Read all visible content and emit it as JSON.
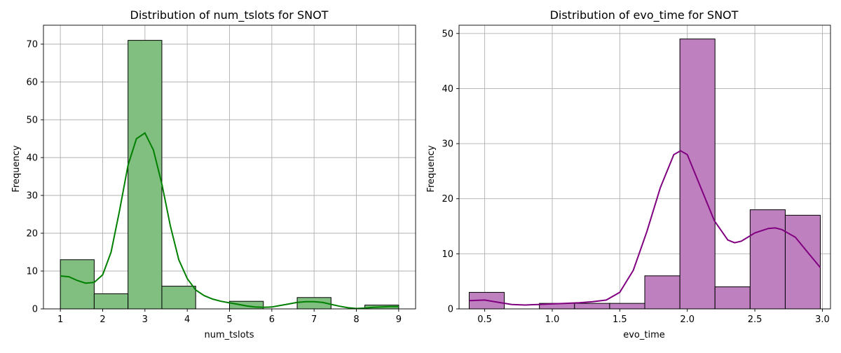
{
  "chart_data": [
    {
      "type": "bar",
      "subtype": "histogram",
      "title": "Distribution of num_tslots for SNOT",
      "xlabel": "num_tslots",
      "ylabel": "Frequency",
      "xlim": [
        0.6,
        9.4
      ],
      "ylim": [
        0,
        75
      ],
      "xticks": [
        1,
        2,
        3,
        4,
        5,
        6,
        7,
        8,
        9
      ],
      "yticks": [
        0,
        10,
        20,
        30,
        40,
        50,
        60,
        70
      ],
      "grid": true,
      "bar_color": "#80bf80",
      "kde_color": "#008000",
      "bins": [
        {
          "x0": 1.0,
          "x1": 1.8,
          "count": 13
        },
        {
          "x0": 1.8,
          "x1": 2.6,
          "count": 4
        },
        {
          "x0": 2.6,
          "x1": 3.4,
          "count": 71
        },
        {
          "x0": 3.4,
          "x1": 4.2,
          "count": 6
        },
        {
          "x0": 4.2,
          "x1": 5.0,
          "count": 0
        },
        {
          "x0": 5.0,
          "x1": 5.8,
          "count": 2
        },
        {
          "x0": 5.8,
          "x1": 6.6,
          "count": 0
        },
        {
          "x0": 6.6,
          "x1": 7.4,
          "count": 3
        },
        {
          "x0": 7.4,
          "x1": 8.2,
          "count": 0
        },
        {
          "x0": 8.2,
          "x1": 9.0,
          "count": 1
        }
      ],
      "kde": {
        "x": [
          1.0,
          1.2,
          1.4,
          1.6,
          1.8,
          2.0,
          2.2,
          2.4,
          2.6,
          2.8,
          3.0,
          3.2,
          3.4,
          3.6,
          3.8,
          4.0,
          4.2,
          4.4,
          4.6,
          4.8,
          5.0,
          5.2,
          5.4,
          5.6,
          5.8,
          6.0,
          6.2,
          6.4,
          6.6,
          6.8,
          7.0,
          7.2,
          7.4,
          7.6,
          7.8,
          8.0,
          8.2,
          8.4,
          8.6,
          8.8,
          9.0
        ],
        "y": [
          8.7,
          8.5,
          7.5,
          6.8,
          7.0,
          9.0,
          15.0,
          26.0,
          38.0,
          45.0,
          46.5,
          42.0,
          33.0,
          22.0,
          13.0,
          8.0,
          5.0,
          3.5,
          2.6,
          2.0,
          1.6,
          1.2,
          0.8,
          0.5,
          0.4,
          0.5,
          0.9,
          1.3,
          1.7,
          1.9,
          1.9,
          1.7,
          1.2,
          0.7,
          0.3,
          0.1,
          0.2,
          0.4,
          0.5,
          0.6,
          0.6
        ]
      }
    },
    {
      "type": "bar",
      "subtype": "histogram",
      "title": "Distribution of evo_time for SNOT",
      "xlabel": "evo_time",
      "ylabel": "Frequency",
      "xlim": [
        0.31,
        3.06
      ],
      "ylim": [
        0,
        51.5
      ],
      "xticks": [
        0.5,
        1.0,
        1.5,
        2.0,
        2.5,
        3.0
      ],
      "xtick_labels": [
        "0.5",
        "1.0",
        "1.5",
        "2.0",
        "2.5",
        "3.0"
      ],
      "yticks": [
        0,
        10,
        20,
        30,
        40,
        50
      ],
      "grid": true,
      "bar_color": "#bf80bf",
      "kde_color": "#800080",
      "bins": [
        {
          "x0": 0.385,
          "x1": 0.645,
          "count": 3
        },
        {
          "x0": 0.645,
          "x1": 0.905,
          "count": 0
        },
        {
          "x0": 0.905,
          "x1": 1.165,
          "count": 1
        },
        {
          "x0": 1.165,
          "x1": 1.425,
          "count": 1
        },
        {
          "x0": 1.425,
          "x1": 1.685,
          "count": 1
        },
        {
          "x0": 1.685,
          "x1": 1.945,
          "count": 6
        },
        {
          "x0": 1.945,
          "x1": 2.205,
          "count": 49
        },
        {
          "x0": 2.205,
          "x1": 2.465,
          "count": 4
        },
        {
          "x0": 2.465,
          "x1": 2.725,
          "count": 18
        },
        {
          "x0": 2.725,
          "x1": 2.985,
          "count": 17
        }
      ],
      "kde": {
        "x": [
          0.385,
          0.5,
          0.6,
          0.7,
          0.8,
          0.9,
          1.0,
          1.1,
          1.2,
          1.3,
          1.4,
          1.5,
          1.6,
          1.7,
          1.8,
          1.9,
          1.95,
          2.0,
          2.1,
          2.2,
          2.3,
          2.35,
          2.4,
          2.5,
          2.6,
          2.65,
          2.7,
          2.8,
          2.9,
          2.985
        ],
        "y": [
          1.5,
          1.6,
          1.2,
          0.8,
          0.7,
          0.8,
          0.9,
          1.0,
          1.1,
          1.3,
          1.6,
          3.0,
          7.0,
          14.0,
          22.0,
          28.0,
          28.7,
          28.0,
          22.0,
          16.0,
          12.5,
          12.0,
          12.3,
          13.8,
          14.6,
          14.7,
          14.4,
          13.0,
          10.0,
          7.5
        ]
      }
    }
  ]
}
